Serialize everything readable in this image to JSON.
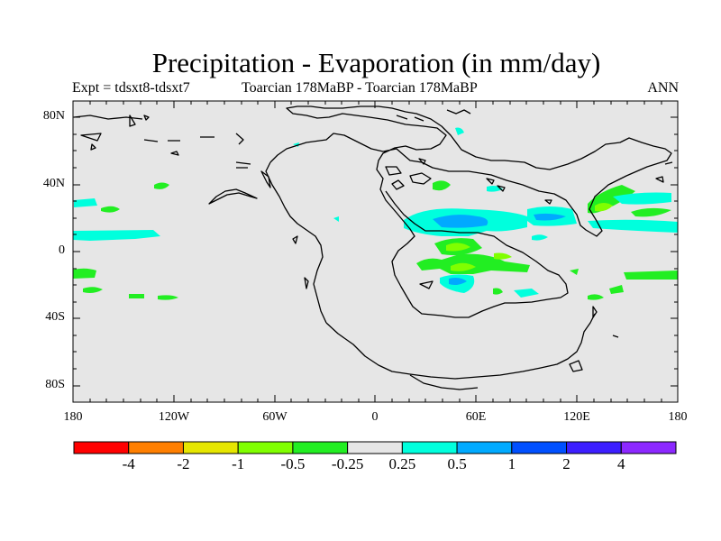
{
  "title": "Precipitation - Evaporation (in mm/day)",
  "subtitle_left": "Expt = tdsxt8-tdsxt7",
  "subtitle_center": "Toarcian 178MaBP - Toarcian 178MaBP",
  "subtitle_right": "ANN",
  "lat_labels": [
    "80N",
    "40N",
    "0",
    "40S",
    "80S"
  ],
  "lon_labels": [
    "180",
    "120W",
    "60W",
    "0",
    "60E",
    "120E",
    "180"
  ],
  "colorbar": {
    "labels": [
      "-4",
      "-2",
      "-1",
      "-0.5",
      "-0.25",
      "0.25",
      "0.5",
      "1",
      "2",
      "4"
    ],
    "colors": [
      "#ff0000",
      "#ff7f00",
      "#e6e600",
      "#80ff00",
      "#22ee22",
      "#e6e6e6",
      "#00ffdd",
      "#00aaff",
      "#0050ff",
      "#3c1eff",
      "#8c28ff"
    ]
  },
  "map_colors": {
    "background": "#e6e6e6",
    "green_light": "#22ee22",
    "green_dark": "#80ff00",
    "cyan": "#00ffdd",
    "blue": "#00aaff"
  }
}
